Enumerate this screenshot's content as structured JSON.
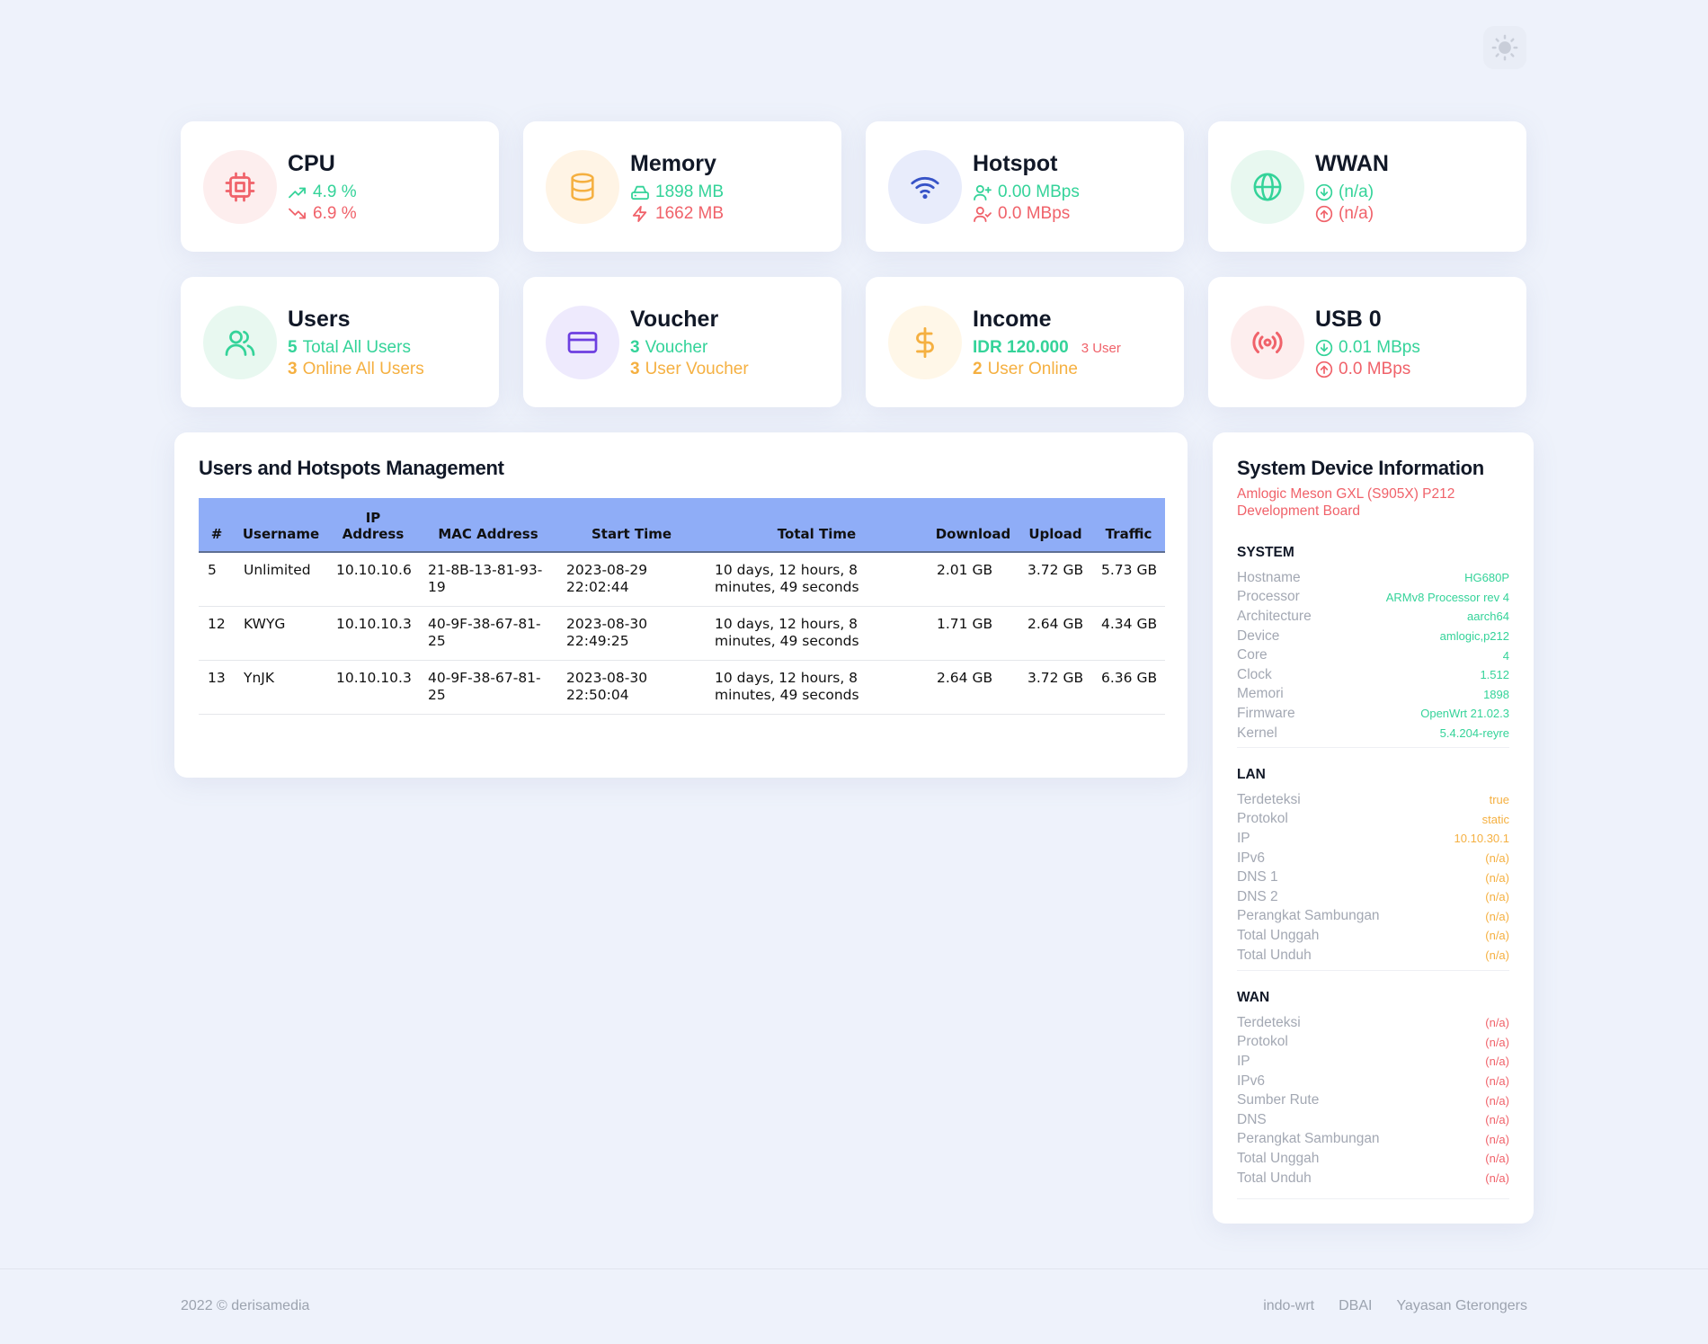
{
  "theme_toggle": {
    "icon": "sun-icon"
  },
  "cards": {
    "cpu": {
      "title": "CPU",
      "up": "4.9 %",
      "down": "6.9 %",
      "bg": "#fdeeee",
      "color": "#f0626a"
    },
    "memory": {
      "title": "Memory",
      "total": "1898 MB",
      "used": "1662 MB",
      "bg": "#fff4e5",
      "color": "#f5b041"
    },
    "hotspot": {
      "title": "Hotspot",
      "upload": "0.00 MBps",
      "download": "0.0 MBps",
      "bg": "#e8ecfb",
      "color": "#3753c7"
    },
    "wwan": {
      "title": "WWAN",
      "down": "(n/a)",
      "up": "(n/a)",
      "bg": "#e8f8f0",
      "color": "#34d399"
    },
    "users": {
      "title": "Users",
      "total_count": "5",
      "total_label": "Total All Users",
      "online_count": "3",
      "online_label": "Online All Users",
      "bg": "#e8f8f0",
      "color": "#34d399"
    },
    "voucher": {
      "title": "Voucher",
      "count": "3",
      "label": "Voucher",
      "user_count": "3",
      "user_label": "User Voucher",
      "bg": "#eeeafd",
      "color": "#6d3fe0"
    },
    "income": {
      "title": "Income",
      "amount": "IDR 120.000",
      "users": "3 User",
      "online_count": "2",
      "online_label": "User Online",
      "bg": "#fff7e8",
      "color": "#f5b041"
    },
    "usb": {
      "title": "USB 0",
      "down": "0.01 MBps",
      "up": "0.0 MBps",
      "bg": "#fdeeee",
      "color": "#f0626a"
    }
  },
  "users_table": {
    "title": "Users and Hotspots Management",
    "headers": [
      "#",
      "Username",
      "IP Address",
      "MAC Address",
      "Start Time",
      "Total Time",
      "Download",
      "Upload",
      "Traffic"
    ],
    "rows": [
      [
        "5",
        "Unlimited",
        "10.10.10.6",
        "21-8B-13-81-93-19",
        "2023-08-29 22:02:44",
        "10 days, 12 hours, 8 minutes, 49 seconds",
        "2.01 GB",
        "3.72 GB",
        "5.73 GB"
      ],
      [
        "12",
        "KWYG",
        "10.10.10.3",
        "40-9F-38-67-81-25",
        "2023-08-30 22:49:25",
        "10 days, 12 hours, 8 minutes, 49 seconds",
        "1.71 GB",
        "2.64 GB",
        "4.34 GB"
      ],
      [
        "13",
        "YnJK",
        "10.10.10.3",
        "40-9F-38-67-81-25",
        "2023-08-30 22:50:04",
        "10 days, 12 hours, 8 minutes, 49 seconds",
        "2.64 GB",
        "3.72 GB",
        "6.36 GB"
      ]
    ]
  },
  "system_info": {
    "title": "System Device Information",
    "board": "Amlogic Meson GXL (S905X) P212 Development Board",
    "sections": [
      {
        "name": "SYSTEM",
        "color": "#34d399",
        "items": [
          {
            "k": "Hostname",
            "v": "HG680P"
          },
          {
            "k": "Processor",
            "v": "ARMv8 Processor rev 4"
          },
          {
            "k": "Architecture",
            "v": "aarch64"
          },
          {
            "k": "Device",
            "v": "amlogic,p212"
          },
          {
            "k": "Core",
            "v": "4"
          },
          {
            "k": "Clock",
            "v": "1.512"
          },
          {
            "k": "Memori",
            "v": "1898"
          },
          {
            "k": "Firmware",
            "v": "OpenWrt 21.02.3"
          },
          {
            "k": "Kernel",
            "v": "5.4.204-reyre"
          }
        ]
      },
      {
        "name": "LAN",
        "color": "#f5b041",
        "items": [
          {
            "k": "Terdeteksi",
            "v": "true"
          },
          {
            "k": "Protokol",
            "v": "static"
          },
          {
            "k": "IP",
            "v": "10.10.30.1"
          },
          {
            "k": "IPv6",
            "v": "(n/a)"
          },
          {
            "k": "DNS 1",
            "v": "(n/a)"
          },
          {
            "k": "DNS 2",
            "v": "(n/a)"
          },
          {
            "k": "Perangkat Sambungan",
            "v": "(n/a)"
          },
          {
            "k": "Total Unggah",
            "v": "(n/a)"
          },
          {
            "k": "Total Unduh",
            "v": "(n/a)"
          }
        ]
      },
      {
        "name": "WAN",
        "color": "#f0626a",
        "items": [
          {
            "k": "Terdeteksi",
            "v": "(n/a)"
          },
          {
            "k": "Protokol",
            "v": "(n/a)"
          },
          {
            "k": "IP",
            "v": "(n/a)"
          },
          {
            "k": "IPv6",
            "v": "(n/a)"
          },
          {
            "k": "Sumber Rute",
            "v": "(n/a)"
          },
          {
            "k": "DNS",
            "v": "(n/a)"
          },
          {
            "k": "Perangkat Sambungan",
            "v": "(n/a)"
          },
          {
            "k": "Total Unggah",
            "v": "(n/a)"
          },
          {
            "k": "Total Unduh",
            "v": "(n/a)"
          }
        ]
      }
    ]
  },
  "footer": {
    "copyright": "2022 © derisamedia",
    "links": [
      "indo-wrt",
      "DBAI",
      "Yayasan Gterongers"
    ]
  }
}
